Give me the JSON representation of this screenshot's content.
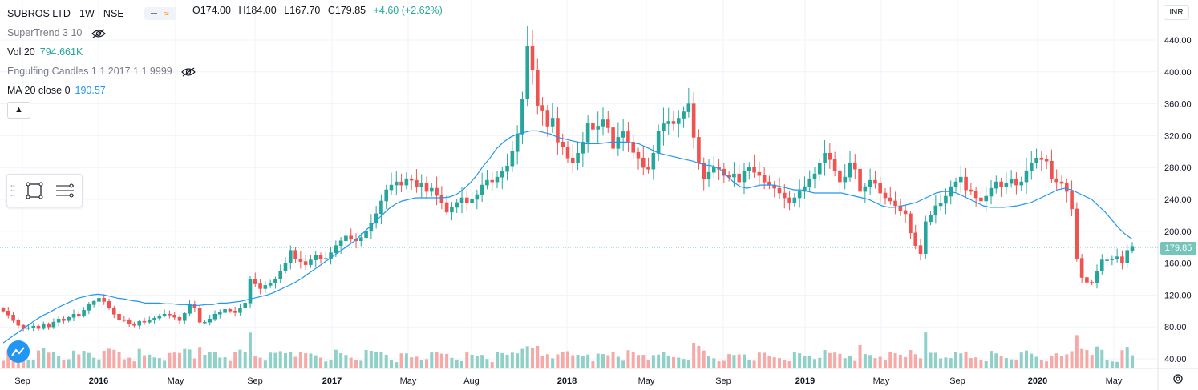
{
  "header": {
    "symbol": "SUBROS LTD · 1W · NSE",
    "open": "O174.00",
    "high": "H184.00",
    "low": "L167.70",
    "close": "C179.85",
    "change": "+4.60 (+2.62%)"
  },
  "indicators": [
    {
      "label": "SuperTrend 3 10",
      "value": "",
      "hidden": true
    },
    {
      "label": "Vol 20",
      "value": "794.661K",
      "hidden": false
    },
    {
      "label": "Engulfing Candles 1 1 2017 1 1 9999",
      "value": "",
      "hidden": true
    },
    {
      "label": "MA 20 close 0",
      "value": "190.57",
      "hidden": false
    }
  ],
  "currency": "INR",
  "last_price_label": "179.85",
  "colors": {
    "up": "#26a69a",
    "down": "#ef5350",
    "ma": "#2196f3",
    "vol_up": "#8fd0c8",
    "vol_down": "#f6a9a7"
  },
  "chart_data": {
    "type": "candlestick",
    "y_axis": {
      "ticks": [
        "40.00",
        "80.00",
        "120.00",
        "160.00",
        "200.00",
        "240.00",
        "280.00",
        "320.00",
        "360.00",
        "400.00",
        "440.00"
      ],
      "ylim": [
        30,
        455
      ]
    },
    "x_axis": {
      "ticks": [
        "Sep",
        "2016",
        "May",
        "Sep",
        "2017",
        "May",
        "Aug",
        "2018",
        "May",
        "Sep",
        "2019",
        "May",
        "Sep",
        "2020",
        "May"
      ]
    },
    "series": [
      {
        "name": "price_close_weekly",
        "values": [
          100,
          95,
          88,
          82,
          78,
          79,
          81,
          78,
          84,
          80,
          86,
          90,
          88,
          92,
          96,
          94,
          101,
          108,
          112,
          116,
          112,
          104,
          96,
          89,
          88,
          84,
          82,
          87,
          86,
          89,
          91,
          94,
          96,
          95,
          92,
          88,
          97,
          108,
          104,
          86,
          86,
          90,
          96,
          98,
          102,
          100,
          98,
          104,
          110,
          140,
          134,
          128,
          132,
          135,
          140,
          150,
          160,
          176,
          165,
          162,
          158,
          164,
          170,
          165,
          166,
          173,
          182,
          188,
          194,
          190,
          188,
          192,
          200,
          210,
          222,
          238,
          252,
          258,
          262,
          258,
          266,
          264,
          256,
          260,
          250,
          254,
          245,
          236,
          224,
          230,
          236,
          242,
          236,
          240,
          246,
          258,
          264,
          262,
          268,
          275,
          282,
          300,
          322,
          366,
          432,
          402,
          358,
          352,
          332,
          342,
          312,
          306,
          292,
          286,
          298,
          312,
          336,
          328,
          332,
          340,
          330,
          304,
          318,
          325,
          312,
          299,
          292,
          280,
          278,
          298,
          326,
          335,
          338,
          335,
          342,
          350,
          360,
          318,
          286,
          266,
          274,
          280,
          278,
          270,
          268,
          272,
          262,
          276,
          280,
          274,
          270,
          262,
          258,
          254,
          248,
          242,
          236,
          242,
          250,
          256,
          266,
          272,
          286,
          298,
          290,
          276,
          262,
          268,
          286,
          278,
          250,
          256,
          264,
          260,
          248,
          242,
          238,
          232,
          226,
          222,
          198,
          182,
          172,
          212,
          220,
          232,
          235,
          244,
          256,
          262,
          268,
          252,
          250,
          242,
          238,
          244,
          254,
          262,
          256,
          260,
          265,
          258,
          262,
          276,
          286,
          292,
          290,
          288,
          266,
          262,
          260,
          250,
          228,
          166,
          142,
          136,
          135,
          150,
          164,
          164,
          165,
          168,
          160,
          176,
          181
        ]
      },
      {
        "name": "MA 20 close 0",
        "values": [
          60,
          66,
          72,
          78,
          84,
          90,
          95,
          99,
          104,
          108,
          112,
          116,
          118,
          120,
          121,
          120,
          118,
          116,
          115,
          113,
          112,
          110,
          110,
          110,
          109,
          109,
          108,
          108,
          107,
          107,
          108,
          108,
          110,
          110,
          111,
          112,
          114,
          116,
          118,
          120,
          123,
          127,
          131,
          135,
          140,
          146,
          152,
          158,
          164,
          170,
          176,
          182,
          188,
          196,
          204,
          212,
          220,
          228,
          234,
          238,
          240,
          242,
          242,
          242,
          242,
          242,
          243,
          246,
          252,
          260,
          270,
          282,
          292,
          304,
          312,
          318,
          322,
          324,
          326,
          326,
          324,
          322,
          318,
          316,
          314,
          312,
          310,
          310,
          310,
          311,
          312,
          312,
          312,
          311,
          310,
          306,
          302,
          298,
          296,
          294,
          292,
          290,
          288,
          285,
          283,
          282,
          278,
          270,
          262,
          256,
          254,
          256,
          258,
          258,
          258,
          256,
          254,
          252,
          252,
          250,
          248,
          248,
          248,
          248,
          248,
          246,
          244,
          242,
          240,
          236,
          232,
          230,
          230,
          232,
          234,
          236,
          240,
          244,
          248,
          250,
          250,
          248,
          244,
          240,
          236,
          232,
          230,
          230,
          230,
          231,
          232,
          234,
          236,
          240,
          244,
          248,
          252,
          254,
          252,
          248,
          244,
          240,
          232,
          224,
          214,
          204,
          196,
          190
        ]
      }
    ]
  }
}
